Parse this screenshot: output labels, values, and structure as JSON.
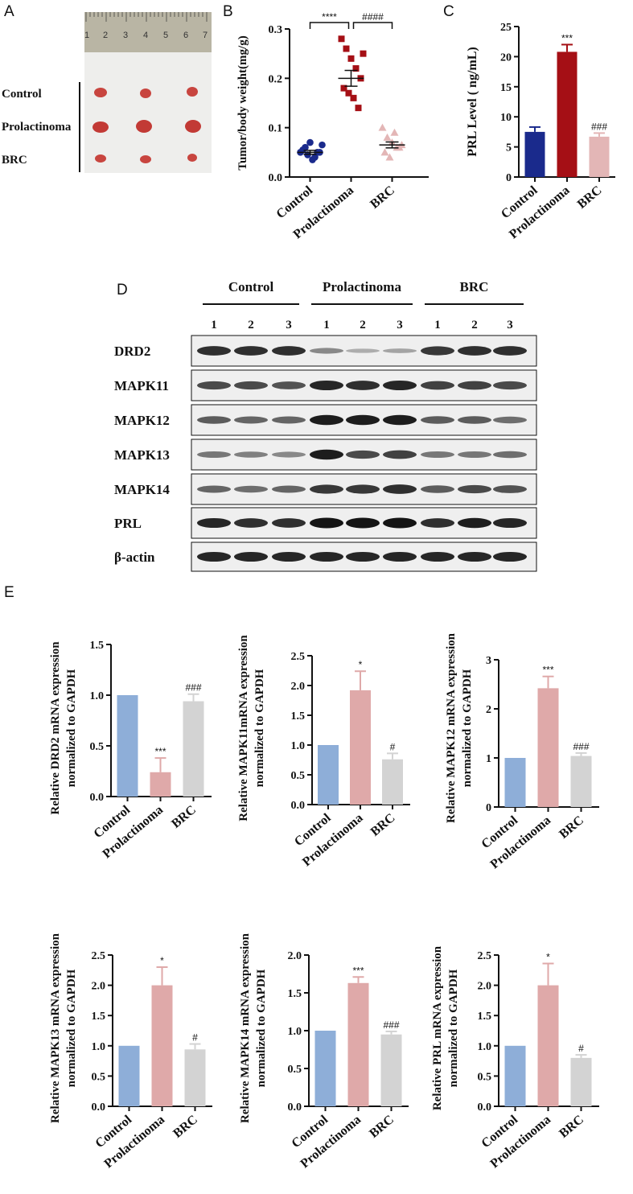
{
  "panels": {
    "A": {
      "letter": "A",
      "row_labels": [
        "Control",
        "Prolactinoma",
        "BRC"
      ],
      "ruler_numbers": [
        "1",
        "2",
        "3",
        "4",
        "5",
        "6",
        "7"
      ]
    },
    "B": {
      "letter": "B"
    },
    "C": {
      "letter": "C"
    },
    "D": {
      "letter": "D",
      "groups": [
        "Control",
        "Prolactinoma",
        "BRC"
      ],
      "lanes": [
        "1",
        "2",
        "3",
        "1",
        "2",
        "3",
        "1",
        "2",
        "3"
      ],
      "proteins": [
        "DRD2",
        "MAPK11",
        "MAPK12",
        "MAPK13",
        "MAPK14",
        "PRL",
        "β-actin"
      ],
      "band_intensity": [
        [
          0.85,
          0.85,
          0.85,
          0.35,
          0.15,
          0.2,
          0.8,
          0.85,
          0.85
        ],
        [
          0.7,
          0.7,
          0.65,
          0.9,
          0.85,
          0.9,
          0.75,
          0.75,
          0.7
        ],
        [
          0.6,
          0.55,
          0.55,
          0.95,
          0.95,
          0.95,
          0.6,
          0.6,
          0.5
        ],
        [
          0.45,
          0.4,
          0.35,
          0.95,
          0.7,
          0.75,
          0.45,
          0.45,
          0.5
        ],
        [
          0.55,
          0.5,
          0.55,
          0.8,
          0.8,
          0.85,
          0.6,
          0.7,
          0.65
        ],
        [
          0.9,
          0.85,
          0.85,
          1.0,
          1.0,
          1.0,
          0.85,
          0.95,
          0.9
        ],
        [
          0.9,
          0.9,
          0.9,
          0.9,
          0.9,
          0.9,
          0.9,
          0.9,
          0.9
        ]
      ]
    },
    "E": {
      "letter": "E"
    }
  },
  "colors": {
    "control_dark": "#1a2a8c",
    "prolactinoma_dark": "#a50f15",
    "brc_light": "#e3b6b6",
    "control_blue": "#8eaed8",
    "prolactinoma_pink": "#dfa9a9",
    "brc_grey": "#d3d3d3"
  },
  "chart_data": [
    {
      "id": "B",
      "type": "scatter",
      "ylabel": "Tumor/body weight(mg/g)",
      "categories": [
        "Control",
        "Prolactinoma",
        "BRC"
      ],
      "ylim": [
        0,
        0.3
      ],
      "yticks": [
        0.0,
        0.1,
        0.2,
        0.3
      ],
      "ytick_labels": [
        "0.0",
        "0.1",
        "0.2",
        "0.3"
      ],
      "points": [
        [
          0.05,
          0.06,
          0.07,
          0.04,
          0.05,
          0.055,
          0.045,
          0.035,
          0.05,
          0.065
        ],
        [
          0.28,
          0.26,
          0.24,
          0.22,
          0.2,
          0.18,
          0.17,
          0.16,
          0.14,
          0.25
        ],
        [
          0.1,
          0.08,
          0.07,
          0.06,
          0.065,
          0.05,
          0.04,
          0.09,
          0.06
        ]
      ],
      "means": [
        0.05,
        0.2,
        0.065
      ],
      "sems": [
        0.004,
        0.016,
        0.006
      ],
      "comparisons": [
        {
          "from": 0,
          "to": 1,
          "label": "****"
        },
        {
          "from": 1,
          "to": 2,
          "label": "####"
        }
      ]
    },
    {
      "id": "C",
      "type": "bar",
      "ylabel": "PRL Level ( ng/mL)",
      "categories": [
        "Control",
        "Prolactinoma",
        "BRC"
      ],
      "values": [
        7.5,
        20.8,
        6.7
      ],
      "errors": [
        0.8,
        1.2,
        0.6
      ],
      "ylim": [
        0,
        25
      ],
      "yticks": [
        0,
        5,
        10,
        15,
        20,
        25
      ],
      "ytick_labels": [
        "0",
        "5",
        "10",
        "15",
        "20",
        "25"
      ],
      "annotations": [
        "",
        "***",
        "###"
      ]
    },
    {
      "id": "E1",
      "type": "bar",
      "ylabel_lines": [
        "Relative DRD2 mRNA expression",
        "normalized to GAPDH"
      ],
      "categories": [
        "Control",
        "Prolactinoma",
        "BRC"
      ],
      "values": [
        1.0,
        0.24,
        0.94
      ],
      "errors": [
        0,
        0.14,
        0.07
      ],
      "ylim": [
        0,
        1.5
      ],
      "yticks": [
        0,
        0.5,
        1.0,
        1.5
      ],
      "ytick_labels": [
        "0.0",
        "0.5",
        "1.0",
        "1.5"
      ],
      "annotations": [
        "",
        "***",
        "###"
      ]
    },
    {
      "id": "E2",
      "type": "bar",
      "ylabel_lines": [
        "Relative MAPK11mRNA expression",
        "normalized to GAPDH"
      ],
      "categories": [
        "Control",
        "Prolactinoma",
        "BRC"
      ],
      "values": [
        1.0,
        1.92,
        0.76
      ],
      "errors": [
        0,
        0.32,
        0.1
      ],
      "ylim": [
        0,
        2.5
      ],
      "yticks": [
        0,
        0.5,
        1.0,
        1.5,
        2.0,
        2.5
      ],
      "ytick_labels": [
        "0.0",
        "0.5",
        "1.0",
        "1.5",
        "2.0",
        "2.5"
      ],
      "annotations": [
        "",
        "*",
        "#"
      ]
    },
    {
      "id": "E3",
      "type": "bar",
      "ylabel_lines": [
        "Relative MAPK12 mRNA expression",
        "normalized to GAPDH"
      ],
      "categories": [
        "Control",
        "Prolactinoma",
        "BRC"
      ],
      "values": [
        1.0,
        2.42,
        1.04
      ],
      "errors": [
        0,
        0.24,
        0.06
      ],
      "ylim": [
        0,
        3
      ],
      "yticks": [
        0,
        1,
        2,
        3
      ],
      "ytick_labels": [
        "0",
        "1",
        "2",
        "3"
      ],
      "annotations": [
        "",
        "***",
        "###"
      ]
    },
    {
      "id": "E4",
      "type": "bar",
      "ylabel_lines": [
        "Relative MAPK13 mRNA expression",
        "normalized to GAPDH"
      ],
      "categories": [
        "Control",
        "Prolactinoma",
        "BRC"
      ],
      "values": [
        1.0,
        2.0,
        0.94
      ],
      "errors": [
        0,
        0.3,
        0.09
      ],
      "ylim": [
        0,
        2.5
      ],
      "yticks": [
        0,
        0.5,
        1.0,
        1.5,
        2.0,
        2.5
      ],
      "ytick_labels": [
        "0.0",
        "0.5",
        "1.0",
        "1.5",
        "2.0",
        "2.5"
      ],
      "annotations": [
        "",
        "*",
        "#"
      ]
    },
    {
      "id": "E5",
      "type": "bar",
      "ylabel_lines": [
        "Relative MAPK14 mRNA expression",
        "normalized to GAPDH"
      ],
      "categories": [
        "Control",
        "Prolactinoma",
        "BRC"
      ],
      "values": [
        1.0,
        1.63,
        0.95
      ],
      "errors": [
        0,
        0.08,
        0.04
      ],
      "ylim": [
        0,
        2.0
      ],
      "yticks": [
        0,
        0.5,
        1.0,
        1.5,
        2.0
      ],
      "ytick_labels": [
        "0.0",
        "0.5",
        "1.0",
        "1.5",
        "2.0"
      ],
      "annotations": [
        "",
        "***",
        "###"
      ]
    },
    {
      "id": "E6",
      "type": "bar",
      "ylabel_lines": [
        "Relative PRL mRNA expression",
        "normalized to GAPDH"
      ],
      "categories": [
        "Control",
        "Prolactinoma",
        "BRC"
      ],
      "values": [
        1.0,
        2.0,
        0.8
      ],
      "errors": [
        0,
        0.36,
        0.05
      ],
      "ylim": [
        0,
        2.5
      ],
      "yticks": [
        0,
        0.5,
        1.0,
        1.5,
        2.0,
        2.5
      ],
      "ytick_labels": [
        "0.0",
        "0.5",
        "1.0",
        "1.5",
        "2.0",
        "2.5"
      ],
      "annotations": [
        "",
        "*",
        "#"
      ]
    }
  ]
}
